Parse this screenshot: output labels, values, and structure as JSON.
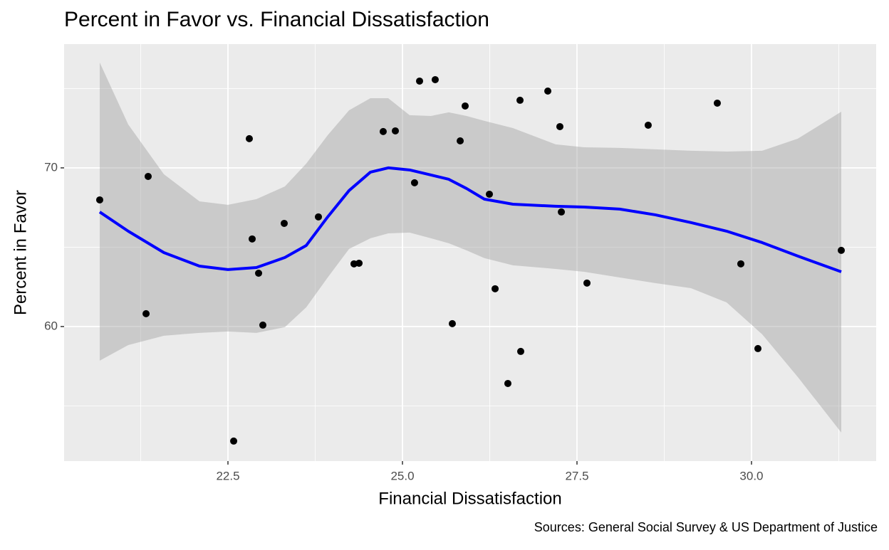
{
  "chart_data": {
    "type": "scatter",
    "title": "Percent in Favor vs. Financial Dissatisfaction",
    "x_label": "Financial Dissatisfaction",
    "y_label": "Percent in Favor",
    "caption": "Sources: General Social Survey & US Department of Justice",
    "xlim": [
      20.153,
      31.786
    ],
    "ylim": [
      51.52,
      77.8
    ],
    "xticks": [
      22.5,
      {
        "value": 25,
        "label": "25.0"
      },
      27.5,
      {
        "value": 30,
        "label": "30.0"
      }
    ],
    "yticks": [
      60,
      70
    ],
    "grid": true,
    "points": {
      "color": "#000000",
      "x": [
        20.663,
        21.357,
        21.327,
        22.806,
        22.847,
        22.939,
        23.0,
        22.582,
        23.306,
        23.796,
        24.306,
        24.378,
        24.724,
        24.898,
        25.173,
        25.245,
        25.469,
        25.898,
        25.827,
        25.714,
        26.245,
        26.327,
        26.51,
        26.684,
        26.694,
        27.082,
        27.255,
        27.276,
        27.643,
        28.52,
        29.51,
        29.847,
        30.092,
        31.286
      ],
      "y": [
        67.98,
        69.46,
        60.81,
        71.84,
        65.52,
        63.36,
        60.09,
        52.78,
        66.5,
        66.91,
        63.95,
        63.99,
        72.29,
        72.33,
        69.06,
        75.47,
        75.56,
        73.9,
        71.7,
        60.18,
        68.34,
        62.38,
        56.41,
        74.26,
        58.43,
        74.84,
        72.6,
        67.22,
        62.74,
        72.69,
        74.08,
        63.95,
        58.61,
        64.8
      ]
    },
    "smooth": {
      "color": "#0000ff",
      "band_color": "#999999",
      "x": [
        20.663,
        21.071,
        21.582,
        22.092,
        22.5,
        22.908,
        23.316,
        23.622,
        23.929,
        24.235,
        24.541,
        24.796,
        25.102,
        25.408,
        25.663,
        25.918,
        26.173,
        26.582,
        27.194,
        27.602,
        28.112,
        28.622,
        29.133,
        29.643,
        30.153,
        30.663,
        31.286
      ],
      "y": [
        67.22,
        66.01,
        64.66,
        63.81,
        63.59,
        63.72,
        64.35,
        65.11,
        66.91,
        68.57,
        69.73,
        70.0,
        69.87,
        69.55,
        69.28,
        68.7,
        68.03,
        67.71,
        67.58,
        67.53,
        67.4,
        67.04,
        66.55,
        66.01,
        65.29,
        64.44,
        63.45
      ],
      "upper": [
        76.64,
        72.74,
        69.6,
        67.89,
        67.67,
        68.03,
        68.83,
        70.27,
        72.06,
        73.63,
        74.39,
        74.39,
        73.32,
        73.27,
        73.5,
        73.27,
        72.96,
        72.51,
        71.48,
        71.3,
        71.26,
        71.17,
        71.08,
        71.03,
        71.08,
        71.84,
        73.54
      ],
      "lower": [
        57.85,
        58.83,
        59.42,
        59.6,
        59.69,
        59.6,
        59.96,
        61.21,
        63.09,
        64.89,
        65.56,
        65.87,
        65.92,
        65.56,
        65.25,
        64.8,
        64.31,
        63.86,
        63.63,
        63.45,
        63.09,
        62.74,
        62.42,
        61.52,
        59.51,
        56.82,
        53.32
      ]
    }
  }
}
